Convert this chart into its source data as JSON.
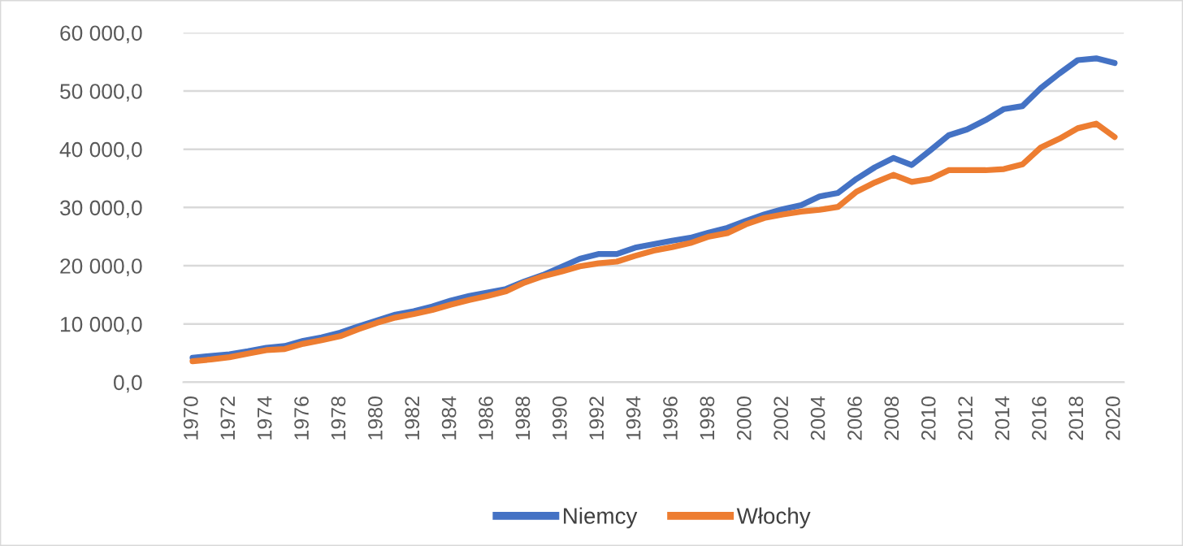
{
  "chart_data": {
    "type": "line",
    "categories": [
      "1970",
      null,
      "1972",
      null,
      "1974",
      null,
      "1976",
      null,
      "1978",
      null,
      "1980",
      null,
      "1982",
      null,
      "1984",
      null,
      "1986",
      null,
      "1988",
      null,
      "1990",
      null,
      "1992",
      null,
      "1994",
      null,
      "1996",
      null,
      "1998",
      null,
      "2000",
      null,
      "2002",
      null,
      "2004",
      null,
      "2006",
      null,
      "2008",
      null,
      "2010",
      null,
      "2012",
      null,
      "2014",
      null,
      "2016",
      null,
      "2018",
      null,
      "2020"
    ],
    "series": [
      {
        "name": "Niemcy",
        "color": "#4472c4",
        "values": [
          4200,
          4500,
          4800,
          5300,
          5900,
          6200,
          7100,
          7700,
          8500,
          9600,
          10600,
          11600,
          12200,
          13000,
          14000,
          14800,
          15400,
          16000,
          17300,
          18400,
          19800,
          21200,
          22000,
          22000,
          23100,
          23700,
          24300,
          24800,
          25700,
          26500,
          27700,
          28800,
          29700,
          30400,
          31900,
          32500,
          34900,
          36900,
          38500,
          37300,
          39800,
          42400,
          43400,
          45000,
          46900,
          47400,
          50500,
          53000,
          55300,
          55600,
          54800
        ]
      },
      {
        "name": "Włochy",
        "color": "#ed7d31",
        "values": [
          3600,
          3900,
          4300,
          4900,
          5500,
          5700,
          6600,
          7200,
          7900,
          9100,
          10200,
          11100,
          11700,
          12400,
          13300,
          14100,
          14800,
          15600,
          17100,
          18200,
          19000,
          19900,
          20400,
          20700,
          21700,
          22600,
          23200,
          23900,
          25000,
          25600,
          27100,
          28200,
          28800,
          29300,
          29600,
          30100,
          32700,
          34300,
          35600,
          34400,
          34900,
          36400,
          36400,
          36400,
          36600,
          37400,
          40300,
          41800,
          43600,
          44400,
          42100
        ]
      }
    ],
    "ylim": [
      0,
      60000
    ],
    "yticks": [
      {
        "value": 0,
        "label": "0,0"
      },
      {
        "value": 10000,
        "label": "10 000,0"
      },
      {
        "value": 20000,
        "label": "20 000,0"
      },
      {
        "value": 30000,
        "label": "30 000,0"
      },
      {
        "value": 40000,
        "label": "40 000,0"
      },
      {
        "value": 50000,
        "label": "50 000,0"
      },
      {
        "value": 60000,
        "label": "60 000,0"
      }
    ],
    "grid": "y",
    "legend": "bottom",
    "marker": "none",
    "line_style": "solid"
  }
}
